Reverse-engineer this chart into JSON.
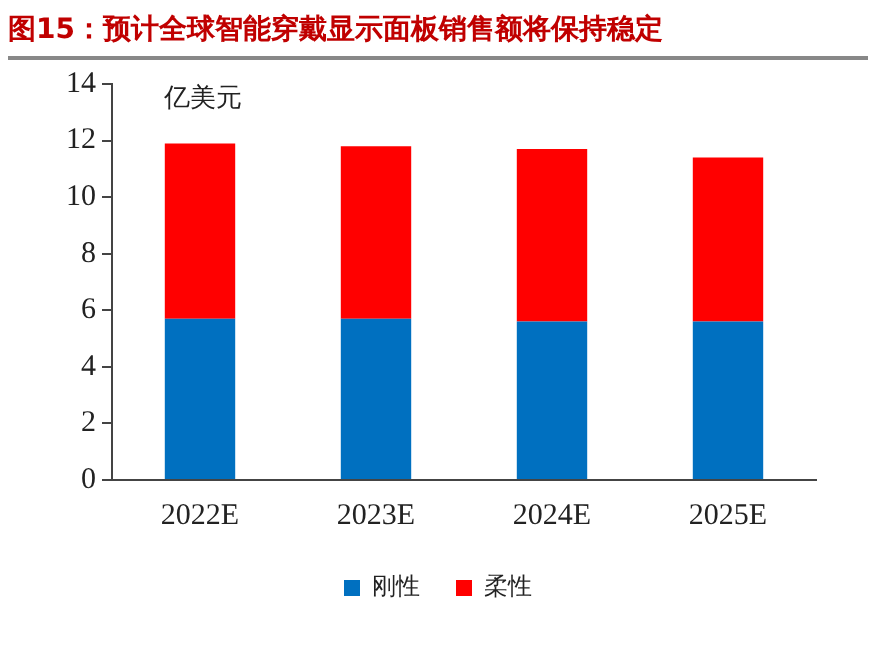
{
  "chart_data": {
    "type": "bar",
    "title": "图15：预计全球智能穿戴显示面板销售额将保持稳定",
    "ylabel": "亿美元",
    "categories": [
      "2022E",
      "2023E",
      "2024E",
      "2025E"
    ],
    "series": [
      {
        "name": "刚性",
        "color": "#0070c0",
        "values": [
          5.7,
          5.7,
          5.6,
          5.6
        ]
      },
      {
        "name": "柔性",
        "color": "#ff0000",
        "values": [
          6.2,
          6.1,
          6.1,
          5.8
        ]
      }
    ],
    "stacked": true,
    "ylim": [
      0,
      14
    ],
    "yticks": [
      0,
      2,
      4,
      6,
      8,
      10,
      12,
      14
    ],
    "grid": false,
    "legend": "bottom"
  }
}
